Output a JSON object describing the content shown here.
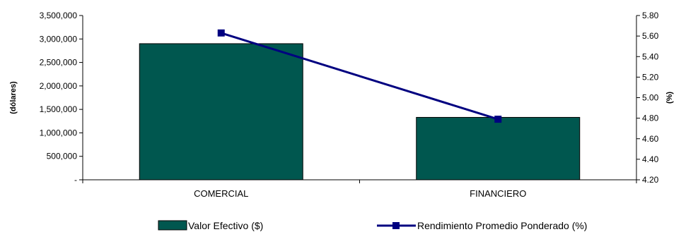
{
  "chart_data": {
    "type": "bar",
    "categories": [
      "COMERCIAL",
      "FINANCIERO"
    ],
    "series": [
      {
        "name": "Valor Efectivo ($)",
        "type": "bar",
        "axis": "left",
        "values": [
          2900000,
          1330000
        ],
        "color": "#00574F"
      },
      {
        "name": "Rendimiento Promedio Ponderado (%)",
        "type": "line",
        "axis": "right",
        "values": [
          5.63,
          4.79
        ],
        "color": "#000080"
      }
    ],
    "ylabel": "(dólares)",
    "ylabel_right": "(%)",
    "ylim": [
      0,
      3500000
    ],
    "ylim_right": [
      4.2,
      5.8
    ],
    "yticks": [
      {
        "value": 0,
        "label": "-"
      },
      {
        "value": 500000,
        "label": "500,000"
      },
      {
        "value": 1000000,
        "label": "1,000,000"
      },
      {
        "value": 1500000,
        "label": "1,500,000"
      },
      {
        "value": 2000000,
        "label": "2,000,000"
      },
      {
        "value": 2500000,
        "label": "2,500,000"
      },
      {
        "value": 3000000,
        "label": "3,000,000"
      },
      {
        "value": 3500000,
        "label": "3,500,000"
      }
    ],
    "yticks_right": [
      {
        "value": 4.2,
        "label": "4.20"
      },
      {
        "value": 4.4,
        "label": "4.40"
      },
      {
        "value": 4.6,
        "label": "4.60"
      },
      {
        "value": 4.8,
        "label": "4.80"
      },
      {
        "value": 5.0,
        "label": "5.00"
      },
      {
        "value": 5.2,
        "label": "5.20"
      },
      {
        "value": 5.4,
        "label": "5.40"
      },
      {
        "value": 5.6,
        "label": "5.60"
      },
      {
        "value": 5.8,
        "label": "5.80"
      }
    ],
    "grid": false,
    "legend_position": "bottom"
  }
}
